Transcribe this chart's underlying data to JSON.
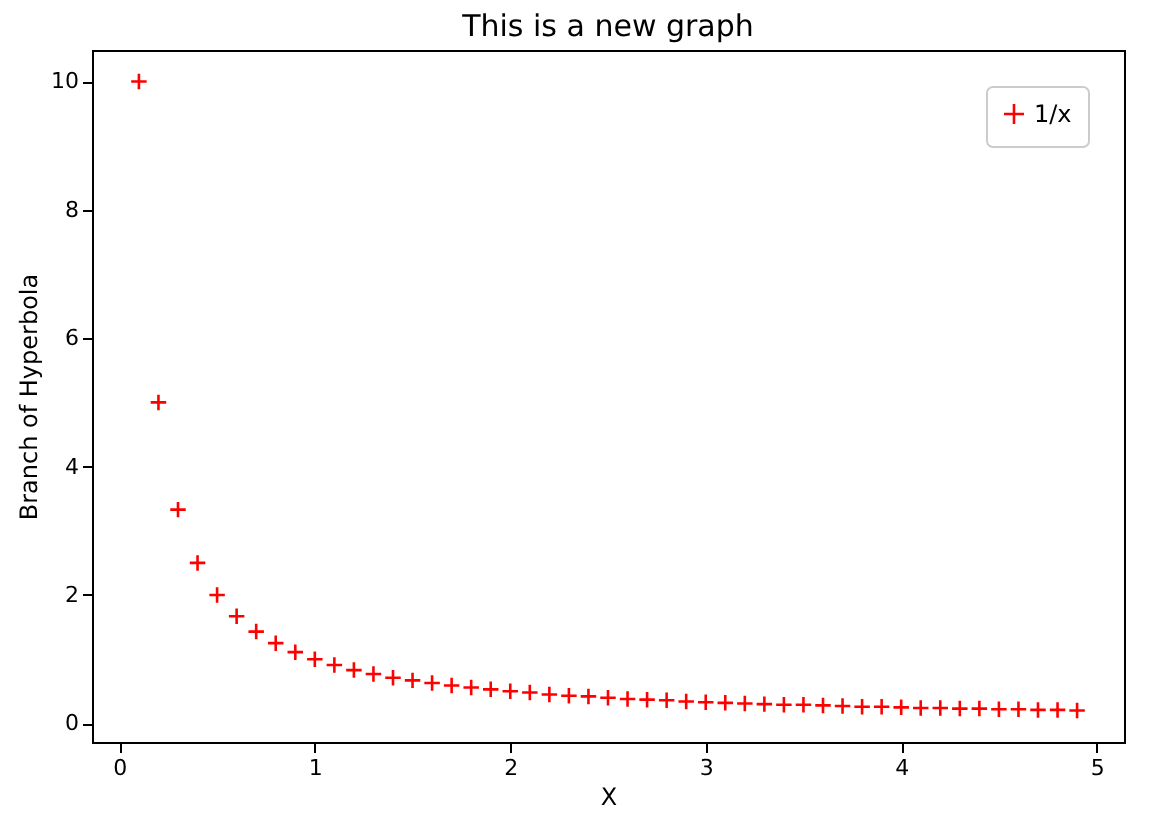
{
  "chart_data": {
    "type": "scatter",
    "title": "This is a new graph",
    "xlabel": "X",
    "ylabel": "Branch of Hyperbola",
    "x": [
      0.1,
      0.2,
      0.3,
      0.4,
      0.5,
      0.6,
      0.7,
      0.8,
      0.9,
      1.0,
      1.1,
      1.2,
      1.3,
      1.4,
      1.5,
      1.6,
      1.7,
      1.8,
      1.9,
      2.0,
      2.1,
      2.2,
      2.3,
      2.4,
      2.5,
      2.6,
      2.7,
      2.8,
      2.9,
      3.0,
      3.1,
      3.2,
      3.3,
      3.4,
      3.5,
      3.6,
      3.7,
      3.8,
      3.9,
      4.0,
      4.1,
      4.2,
      4.3,
      4.4,
      4.5,
      4.6,
      4.7,
      4.8,
      4.9
    ],
    "series": [
      {
        "name": "1/x",
        "color": "#ff0000",
        "values": [
          10,
          5,
          3.33,
          2.5,
          2,
          1.67,
          1.43,
          1.25,
          1.11,
          1,
          0.91,
          0.83,
          0.77,
          0.71,
          0.67,
          0.63,
          0.59,
          0.56,
          0.53,
          0.5,
          0.48,
          0.45,
          0.43,
          0.42,
          0.4,
          0.38,
          0.37,
          0.36,
          0.34,
          0.33,
          0.32,
          0.31,
          0.3,
          0.29,
          0.29,
          0.28,
          0.27,
          0.26,
          0.26,
          0.25,
          0.24,
          0.24,
          0.23,
          0.23,
          0.22,
          0.22,
          0.21,
          0.21,
          0.2
        ]
      }
    ],
    "xlim": [
      -0.14,
      5.14
    ],
    "ylim": [
      -0.29,
      10.49
    ],
    "xticks": [
      0,
      1,
      2,
      3,
      4,
      5
    ],
    "yticks": [
      0,
      2,
      4,
      6,
      8,
      10
    ],
    "marker": "cross",
    "legend": "top right",
    "grid": false
  }
}
